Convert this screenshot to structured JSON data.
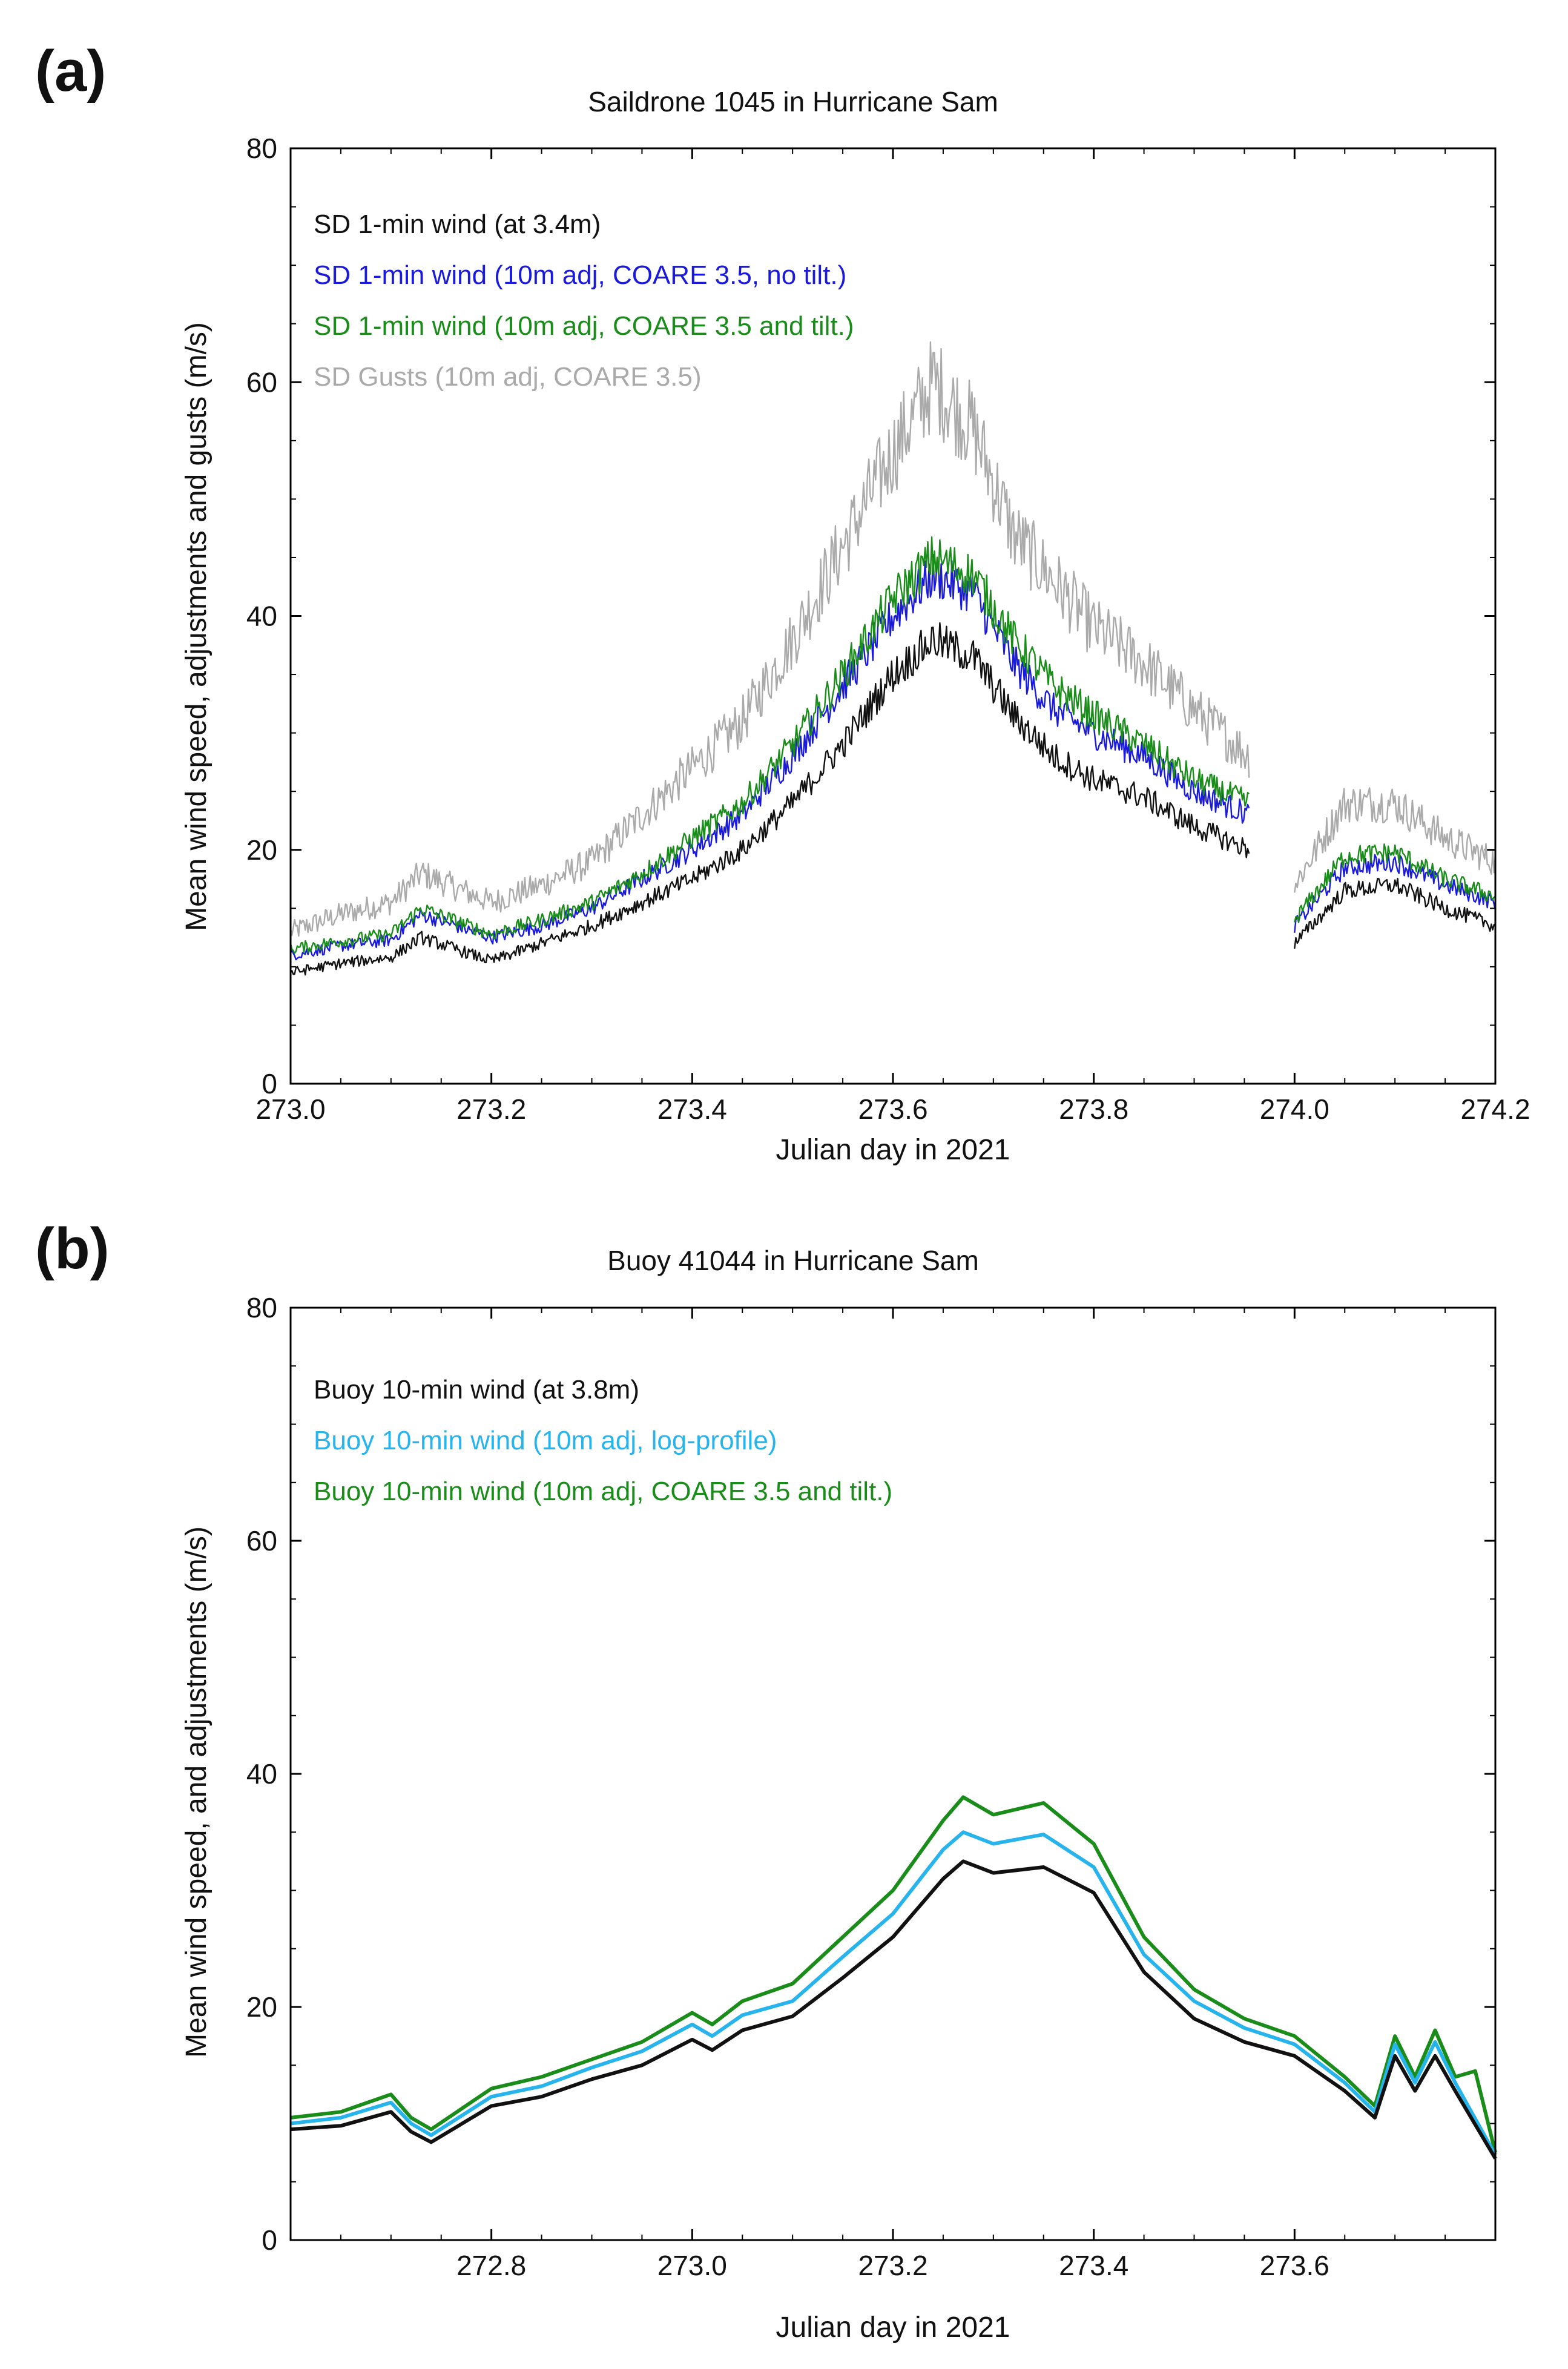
{
  "figure_labels": [
    "(a)",
    "(b)"
  ],
  "chart_data": [
    {
      "panel": "(a)",
      "type": "line",
      "title": "Saildrone 1045 in Hurricane Sam",
      "xlabel": "Julian day in 2021",
      "ylabel": "Mean wind speed, adjustments and gusts (m/s)",
      "xlim": [
        273.0,
        274.2
      ],
      "ylim": [
        0,
        80
      ],
      "xticks": [
        "273.0",
        "273.2",
        "273.4",
        "273.6",
        "273.8",
        "274.0",
        "274.2"
      ],
      "xtick_values": [
        273.0,
        273.2,
        273.4,
        273.6,
        273.8,
        274.0,
        274.2
      ],
      "yticks": [
        "0",
        "20",
        "40",
        "60",
        "80"
      ],
      "ytick_values": [
        0,
        20,
        40,
        60,
        80
      ],
      "gap": [
        273.955,
        274.0
      ],
      "noise": true,
      "series": [
        {
          "name": "SD Gusts (10m adj, COARE 3.5)",
          "color": "#aaaaaa",
          "x": [
            273.0,
            273.05,
            273.1,
            273.13,
            273.2,
            273.25,
            273.3,
            273.35,
            273.4,
            273.45,
            273.5,
            273.55,
            273.6,
            273.64,
            273.68,
            273.72,
            273.76,
            273.8,
            273.85,
            273.9,
            273.955,
            274.0,
            274.05,
            274.1,
            274.15,
            274.2
          ],
          "values": [
            13,
            14.5,
            15.5,
            18,
            15.5,
            17,
            19,
            23,
            27,
            31,
            38,
            46,
            54,
            60,
            56,
            47,
            43,
            39,
            36,
            32,
            28,
            17,
            24,
            24,
            21,
            19
          ]
        },
        {
          "name": "SD 1-min wind (10m adj, COARE 3.5, no tilt.)",
          "color": "#1a1adc",
          "x": [
            273.0,
            273.05,
            273.1,
            273.13,
            273.2,
            273.25,
            273.3,
            273.35,
            273.4,
            273.45,
            273.5,
            273.55,
            273.6,
            273.64,
            273.68,
            273.72,
            273.76,
            273.8,
            273.85,
            273.9,
            273.955,
            274.0,
            274.05,
            274.1,
            274.15,
            274.2
          ],
          "values": [
            11,
            11.8,
            12.3,
            14.5,
            12.5,
            13.5,
            15,
            17.5,
            20,
            23,
            28,
            34,
            40,
            43.5,
            42,
            36,
            32,
            30,
            28,
            25,
            23,
            13.5,
            18.5,
            19,
            17,
            15.5
          ]
        },
        {
          "name": "SD 1-min wind (10m adj, COARE 3.5 and tilt.)",
          "color": "#1a8c1a",
          "x": [
            273.0,
            273.05,
            273.1,
            273.13,
            273.2,
            273.25,
            273.3,
            273.35,
            273.4,
            273.45,
            273.5,
            273.55,
            273.6,
            273.64,
            273.68,
            273.72,
            273.76,
            273.8,
            273.85,
            273.9,
            273.955,
            274.0,
            274.05,
            274.1,
            274.15,
            274.2
          ],
          "values": [
            11.5,
            12.2,
            12.8,
            15,
            12.8,
            14,
            15.5,
            18,
            21,
            24,
            29,
            35,
            41.5,
            45,
            43.5,
            38,
            34,
            31.5,
            29,
            26,
            24,
            14,
            19.5,
            19.8,
            17.5,
            16
          ]
        },
        {
          "name": "SD 1-min wind (at 3.4m)",
          "color": "#111111",
          "x": [
            273.0,
            273.05,
            273.1,
            273.13,
            273.2,
            273.25,
            273.3,
            273.35,
            273.4,
            273.45,
            273.5,
            273.55,
            273.6,
            273.64,
            273.68,
            273.72,
            273.76,
            273.8,
            273.85,
            273.9,
            273.955,
            274.0,
            274.05,
            274.1,
            274.15,
            274.2
          ],
          "values": [
            9.5,
            10.3,
            10.8,
            12.5,
            10.5,
            12,
            13.5,
            15.5,
            17.5,
            20,
            24,
            29,
            35,
            38,
            36.5,
            31.5,
            28,
            26,
            24.5,
            22,
            20,
            12,
            16.5,
            17,
            15,
            13.5
          ]
        }
      ],
      "legend_order": [
        {
          "label": "SD 1-min wind (at 3.4m)",
          "color": "#111111"
        },
        {
          "label": "SD 1-min wind (10m adj, COARE 3.5, no tilt.)",
          "color": "#1a1adc"
        },
        {
          "label": "SD 1-min wind (10m adj, COARE 3.5 and tilt.)",
          "color": "#1a8c1a"
        },
        {
          "label": "SD Gusts (10m adj, COARE 3.5)",
          "color": "#aaaaaa"
        }
      ]
    },
    {
      "panel": "(b)",
      "type": "line",
      "title": "Buoy 41044 in Hurricane Sam",
      "xlabel": "Julian day in 2021",
      "ylabel": "Mean wind speed, and adjustments  (m/s)",
      "xlim": [
        272.6,
        273.8
      ],
      "ylim": [
        0,
        80
      ],
      "xticks": [
        "272.8",
        "273.0",
        "273.2",
        "273.4",
        "273.6"
      ],
      "xtick_values": [
        272.8,
        273.0,
        273.2,
        273.4,
        273.6
      ],
      "yticks": [
        "0",
        "20",
        "40",
        "60",
        "80"
      ],
      "ytick_values": [
        0,
        20,
        40,
        60,
        80
      ],
      "noise": false,
      "series": [
        {
          "name": "Buoy 10-min wind (10m adj, COARE 3.5 and tilt.)",
          "color": "#1a8c1a",
          "x": [
            272.6,
            272.65,
            272.7,
            272.72,
            272.74,
            272.8,
            272.85,
            272.9,
            272.95,
            273.0,
            273.02,
            273.05,
            273.1,
            273.15,
            273.2,
            273.25,
            273.27,
            273.3,
            273.35,
            273.4,
            273.45,
            273.5,
            273.55,
            273.6,
            273.65,
            273.68,
            273.7,
            273.72,
            273.74,
            273.76,
            273.78,
            273.8
          ],
          "values": [
            10.5,
            11,
            12.5,
            10.5,
            9.5,
            13,
            14,
            15.5,
            17,
            19.5,
            18.5,
            20.5,
            22,
            26,
            30,
            36,
            38,
            36.5,
            37.5,
            34,
            26,
            21.5,
            19,
            17.5,
            14,
            11.5,
            17.5,
            14,
            18,
            14,
            14.5,
            7.5
          ]
        },
        {
          "name": "Buoy 10-min wind (10m adj, log-profile)",
          "color": "#27b4ec",
          "x": [
            272.6,
            272.65,
            272.7,
            272.72,
            272.74,
            272.8,
            272.85,
            272.9,
            272.95,
            273.0,
            273.02,
            273.05,
            273.1,
            273.15,
            273.2,
            273.25,
            273.27,
            273.3,
            273.35,
            273.4,
            273.45,
            273.5,
            273.55,
            273.6,
            273.65,
            273.68,
            273.7,
            273.72,
            273.74,
            273.76,
            273.8
          ],
          "values": [
            10,
            10.5,
            11.8,
            10,
            9,
            12.3,
            13.2,
            14.8,
            16.2,
            18.5,
            17.5,
            19.3,
            20.5,
            24.3,
            28,
            33.5,
            35,
            34,
            34.8,
            32,
            24.5,
            20.5,
            18.2,
            16.8,
            13.5,
            11,
            16.8,
            13.5,
            17,
            13.5,
            7.3
          ]
        },
        {
          "name": "Buoy 10-min wind (at 3.8m)",
          "color": "#111111",
          "x": [
            272.6,
            272.65,
            272.7,
            272.72,
            272.74,
            272.8,
            272.85,
            272.9,
            272.95,
            273.0,
            273.02,
            273.05,
            273.1,
            273.15,
            273.2,
            273.25,
            273.27,
            273.3,
            273.35,
            273.4,
            273.45,
            273.5,
            273.55,
            273.6,
            273.65,
            273.68,
            273.7,
            273.72,
            273.74,
            273.76,
            273.8
          ],
          "values": [
            9.5,
            9.8,
            11,
            9.3,
            8.4,
            11.5,
            12.3,
            13.8,
            15,
            17.2,
            16.3,
            18,
            19.2,
            22.5,
            26,
            31,
            32.5,
            31.5,
            32,
            29.8,
            23,
            19,
            17,
            15.8,
            12.8,
            10.5,
            15.8,
            12.8,
            15.8,
            12.8,
            7
          ]
        }
      ],
      "legend_order": [
        {
          "label": "Buoy 10-min wind (at 3.8m)",
          "color": "#111111"
        },
        {
          "label": "Buoy 10-min wind (10m adj, log-profile)",
          "color": "#27b4ec"
        },
        {
          "label": "Buoy 10-min wind (10m adj, COARE 3.5 and tilt.)",
          "color": "#1a8c1a"
        }
      ]
    }
  ]
}
